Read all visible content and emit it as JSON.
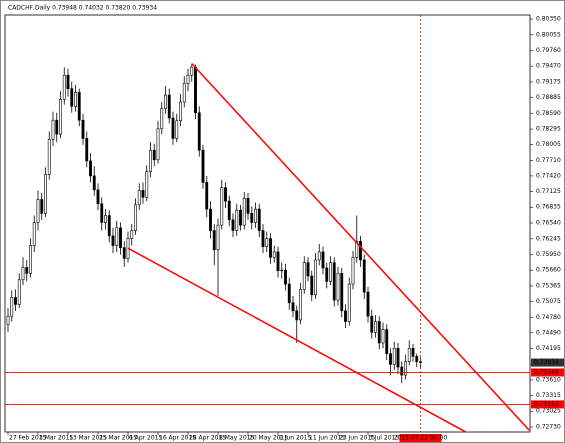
{
  "chart_data": {
    "type": "candlestick",
    "title": "CADCHF,Daily  0.73948 0.74032 0.73820 0.73934",
    "open": [
      0.7465,
      0.748,
      0.7515,
      0.7502,
      0.7548,
      0.7571,
      0.756,
      0.7612,
      0.7655,
      0.7698,
      0.7672,
      0.7745,
      0.781,
      0.7846,
      0.782,
      0.7885,
      0.793,
      0.7905,
      0.7872,
      0.7898,
      0.7846,
      0.7812,
      0.777,
      0.7742,
      0.7716,
      0.769,
      0.7655,
      0.7668,
      0.763,
      0.7612,
      0.7645,
      0.7608,
      0.7588,
      0.7625,
      0.764,
      0.7688,
      0.7715,
      0.7702,
      0.775,
      0.779,
      0.7772,
      0.783,
      0.7868,
      0.7893,
      0.785,
      0.7812,
      0.7845,
      0.788,
      0.7915,
      0.793,
      0.7945,
      0.786,
      0.779,
      0.773,
      0.768,
      0.764,
      0.7604,
      0.765,
      0.772,
      0.7695,
      0.766,
      0.764,
      0.7678,
      0.765,
      0.77,
      0.7672,
      0.7655,
      0.768,
      0.764,
      0.761,
      0.7625,
      0.759,
      0.76,
      0.7565,
      0.7566,
      0.754,
      0.7505,
      0.749,
      0.7473,
      0.753,
      0.758,
      0.7555,
      0.752,
      0.7585,
      0.76,
      0.757,
      0.7545,
      0.758,
      0.751,
      0.756,
      0.749,
      0.747,
      0.754,
      0.759,
      0.762,
      0.7585,
      0.7525,
      0.748,
      0.745,
      0.747,
      0.743,
      0.7455,
      0.741,
      0.739,
      0.742,
      0.7385,
      0.737,
      0.7395,
      0.742,
      0.7405,
      0.73948
    ],
    "high": [
      0.7495,
      0.7528,
      0.753,
      0.756,
      0.759,
      0.7585,
      0.7625,
      0.7668,
      0.7715,
      0.771,
      0.7758,
      0.7825,
      0.7862,
      0.786,
      0.79,
      0.7945,
      0.7942,
      0.7918,
      0.7912,
      0.7905,
      0.7858,
      0.7825,
      0.7785,
      0.776,
      0.7728,
      0.7702,
      0.768,
      0.7678,
      0.7645,
      0.7658,
      0.7655,
      0.762,
      0.7638,
      0.7652,
      0.77,
      0.7728,
      0.773,
      0.7762,
      0.7805,
      0.7802,
      0.7845,
      0.788,
      0.791,
      0.7905,
      0.7862,
      0.7858,
      0.7895,
      0.7928,
      0.7942,
      0.7952,
      0.795,
      0.7872,
      0.78,
      0.7742,
      0.7695,
      0.7652,
      0.7662,
      0.7735,
      0.773,
      0.7705,
      0.7672,
      0.769,
      0.7688,
      0.7712,
      0.771,
      0.7685,
      0.7692,
      0.769,
      0.7652,
      0.7638,
      0.7635,
      0.7612,
      0.761,
      0.758,
      0.7578,
      0.7552,
      0.7518,
      0.75,
      0.7542,
      0.7592,
      0.759,
      0.7565,
      0.7598,
      0.7615,
      0.761,
      0.758,
      0.7592,
      0.759,
      0.7572,
      0.757,
      0.7502,
      0.7552,
      0.7602,
      0.7668,
      0.763,
      0.7595,
      0.7535,
      0.7492,
      0.7482,
      0.748,
      0.7468,
      0.7465,
      0.742,
      0.7432,
      0.743,
      0.7395,
      0.7408,
      0.7435,
      0.7428,
      0.741,
      0.74032
    ],
    "low": [
      0.745,
      0.747,
      0.749,
      0.7495,
      0.7538,
      0.7545,
      0.7552,
      0.76,
      0.764,
      0.766,
      0.7665,
      0.7735,
      0.7798,
      0.7805,
      0.7812,
      0.7875,
      0.789,
      0.786,
      0.7862,
      0.7835,
      0.78,
      0.7758,
      0.773,
      0.7705,
      0.7678,
      0.764,
      0.7642,
      0.7618,
      0.7598,
      0.76,
      0.7595,
      0.7572,
      0.758,
      0.7612,
      0.7632,
      0.7678,
      0.769,
      0.7695,
      0.774,
      0.776,
      0.7765,
      0.782,
      0.7858,
      0.784,
      0.78,
      0.7805,
      0.7835,
      0.787,
      0.79,
      0.7918,
      0.7848,
      0.7778,
      0.7718,
      0.7665,
      0.7625,
      0.7575,
      0.7518,
      0.7642,
      0.7682,
      0.7648,
      0.7628,
      0.763,
      0.764,
      0.7642,
      0.766,
      0.7642,
      0.7645,
      0.7628,
      0.7598,
      0.76,
      0.7578,
      0.758,
      0.7552,
      0.755,
      0.7528,
      0.7492,
      0.7478,
      0.743,
      0.7465,
      0.7522,
      0.7545,
      0.7508,
      0.7512,
      0.7575,
      0.7558,
      0.7532,
      0.7538,
      0.7498,
      0.75,
      0.7478,
      0.7458,
      0.7462,
      0.753,
      0.758,
      0.7572,
      0.7512,
      0.7468,
      0.7438,
      0.744,
      0.7418,
      0.742,
      0.7398,
      0.737,
      0.738,
      0.7372,
      0.7355,
      0.7362,
      0.7388,
      0.7395,
      0.7385,
      0.7382
    ],
    "close": [
      0.748,
      0.7515,
      0.7502,
      0.7548,
      0.7571,
      0.756,
      0.7612,
      0.7655,
      0.7698,
      0.7672,
      0.7745,
      0.781,
      0.7846,
      0.782,
      0.7885,
      0.793,
      0.7905,
      0.7872,
      0.7898,
      0.7846,
      0.7812,
      0.777,
      0.7742,
      0.7716,
      0.769,
      0.7655,
      0.7668,
      0.763,
      0.7612,
      0.7645,
      0.7608,
      0.7588,
      0.7625,
      0.764,
      0.7688,
      0.7715,
      0.7702,
      0.775,
      0.779,
      0.7772,
      0.783,
      0.7868,
      0.7893,
      0.785,
      0.7812,
      0.7845,
      0.788,
      0.7915,
      0.793,
      0.7945,
      0.786,
      0.779,
      0.773,
      0.768,
      0.764,
      0.7604,
      0.765,
      0.772,
      0.7695,
      0.766,
      0.764,
      0.7678,
      0.765,
      0.77,
      0.7672,
      0.7655,
      0.768,
      0.764,
      0.761,
      0.7625,
      0.759,
      0.76,
      0.7565,
      0.7566,
      0.754,
      0.7505,
      0.749,
      0.7473,
      0.753,
      0.758,
      0.7555,
      0.752,
      0.7585,
      0.76,
      0.757,
      0.7545,
      0.758,
      0.751,
      0.756,
      0.749,
      0.747,
      0.754,
      0.759,
      0.762,
      0.7585,
      0.7525,
      0.748,
      0.745,
      0.747,
      0.743,
      0.7455,
      0.741,
      0.739,
      0.742,
      0.7385,
      0.737,
      0.7395,
      0.742,
      0.7405,
      0.7395,
      0.73934
    ],
    "up_color": "#ffffff",
    "down_color": "#000000",
    "xlim": [
      -0.8,
      139.2
    ],
    "xticks": [
      {
        "value": 0,
        "label": "27 Feb 2015"
      },
      {
        "value": 8,
        "label": "3 Mar 2015"
      },
      {
        "value": 16,
        "label": "13 Mar 2015"
      },
      {
        "value": 24,
        "label": "25 Mar 2015"
      },
      {
        "value": 32,
        "label": "6 Apr 2015"
      },
      {
        "value": 40,
        "label": "16 Apr 2015"
      },
      {
        "value": 48,
        "label": "28 Apr 2015"
      },
      {
        "value": 56,
        "label": "8 May 2015"
      },
      {
        "value": 64,
        "label": "20 May 2015"
      },
      {
        "value": 72,
        "label": "1 Jun 2015"
      },
      {
        "value": 80,
        "label": "11 Jun 2015"
      },
      {
        "value": 88,
        "label": "23 Jun 2015"
      },
      {
        "value": 96,
        "label": "3 Jul 2015"
      }
    ],
    "ylim": [
      0.72637,
      0.80425
    ],
    "yticks": [
      {
        "value": 0.8035,
        "label": "0.80350"
      },
      0.80055,
      {
        "value": 0.7976,
        "label": "0.79760"
      },
      {
        "value": 0.7947,
        "label": "0.79470"
      },
      0.79175,
      0.78885,
      {
        "value": 0.7859,
        "label": "0.78590"
      },
      0.78295,
      0.78005,
      {
        "value": 0.7771,
        "label": "0.77710"
      },
      {
        "value": 0.7742,
        "label": "0.77420"
      },
      0.77125,
      0.76835,
      {
        "value": 0.7654,
        "label": "0.76540"
      },
      0.76245,
      {
        "value": 0.7595,
        "label": "0.75950"
      },
      {
        "value": 0.7566,
        "label": "0.75660"
      },
      0.75365,
      0.75075,
      {
        "value": 0.7478,
        "label": "0.74780"
      },
      {
        "value": 0.7449,
        "label": "0.74490"
      },
      0.74195,
      0.73905,
      {
        "value": 0.7361,
        "label": "0.73610"
      },
      0.73315,
      0.73025,
      {
        "value": 0.7273,
        "label": "0.72730"
      }
    ],
    "current_price": 0.73934,
    "hlines": [
      0.73749,
      0.73152
    ],
    "line_color": "#ff0000",
    "vline": {
      "value": 110,
      "label": "2015.07.22 00:00"
    },
    "trendlines": [
      {
        "x": [
          49,
          139
        ],
        "y": [
          0.7952,
          0.7267
        ]
      },
      {
        "x": [
          32,
          122
        ],
        "y": [
          0.7607,
          0.7264
        ]
      }
    ]
  }
}
